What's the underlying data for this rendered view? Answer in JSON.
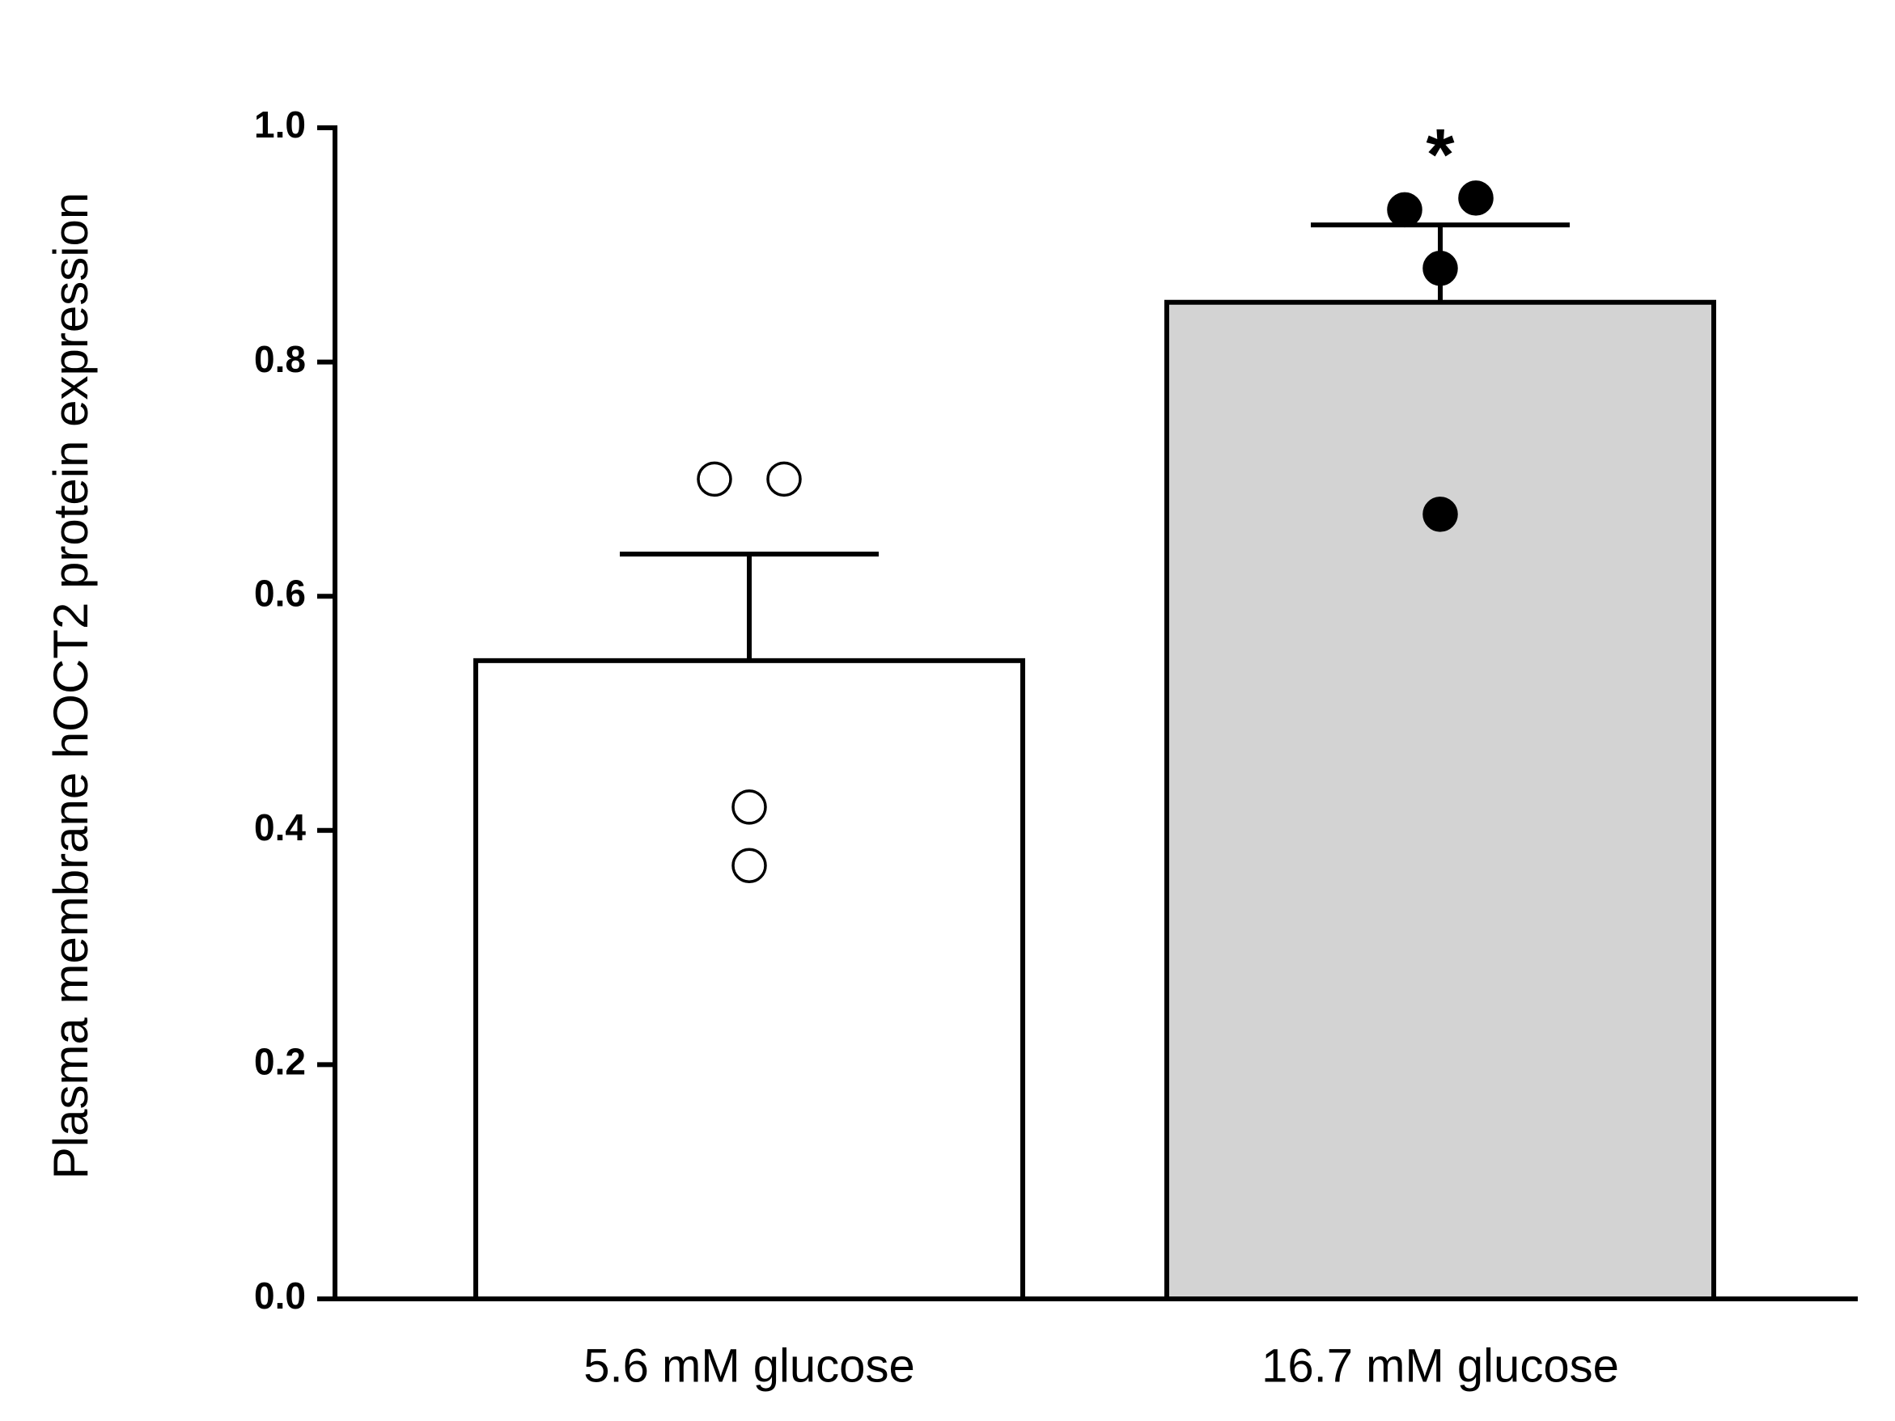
{
  "chart_data": {
    "type": "bar",
    "y_label": "Plasma membrane hOCT2 protein expression",
    "categories": [
      "5.6 mM glucose",
      "16.7 mM glucose"
    ],
    "values": [
      0.545,
      0.851
    ],
    "errors": [
      0.091,
      0.066
    ],
    "colors": [
      "#ffffff",
      "#d3d3d3"
    ],
    "points": [
      [
        0.7,
        0.7,
        0.42,
        0.37
      ],
      [
        0.93,
        0.94,
        0.88,
        0.67
      ]
    ],
    "point_fill": [
      "#ffffff",
      "#000000"
    ],
    "annotations": [
      "",
      "*"
    ],
    "ylim": [
      0,
      1.0
    ],
    "yticks": [
      {
        "value": 0,
        "label": "0.0"
      },
      0.2,
      0.4,
      0.6,
      0.8,
      {
        "value": 1.0,
        "label": "1.0"
      }
    ]
  }
}
